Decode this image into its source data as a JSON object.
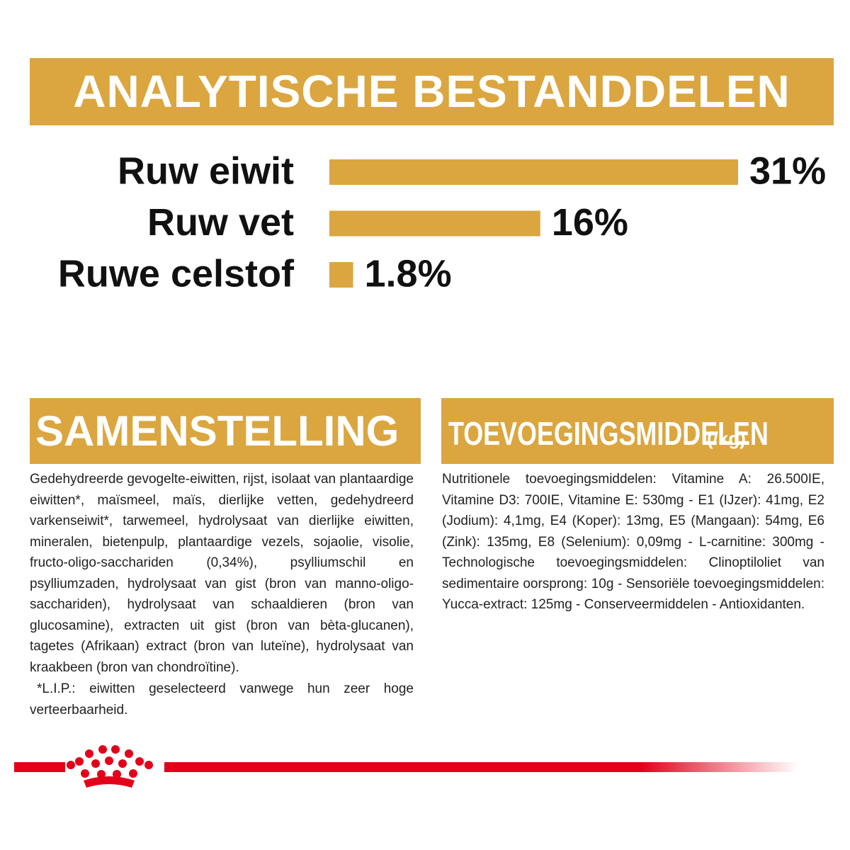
{
  "chart_data": {
    "type": "bar",
    "orientation": "horizontal",
    "title": "ANALYTISCHE BESTANDDELEN",
    "categories": [
      "Ruw eiwit",
      "Ruw vet",
      "Ruwe celstof"
    ],
    "values": [
      31,
      16,
      1.8
    ],
    "value_labels": [
      "31%",
      "16%",
      "1.8%"
    ],
    "color": "#dba63f"
  },
  "composition": {
    "title": "SAMENSTELLING",
    "text": "Gedehydreerde gevogelte-eiwitten, rijst, isolaat van plantaardige eiwitten*, maïsmeel, maïs, dierlijke vetten, gedehydreerd varkenseiwit*, tarwemeel, hydrolysaat van dierlijke eiwitten, mineralen, bietenpulp, plantaardige vezels, sojaolie, visolie, fructo-oligo-sacchariden (0,34%), psylliumschil en psylliumzaden, hydrolysaat van gist (bron van manno-oligo-sacchariden), hydrolysaat van schaaldieren (bron van glucosamine), extracten uit gist (bron van bèta-glucanen), tagetes (Afrikaan) extract (bron van luteïne), hydrolysaat van kraakbeen (bron van chondroïtine).",
    "note": "*L.I.P.: eiwitten geselecteerd vanwege hun zeer hoge verteerbaarheid."
  },
  "additives": {
    "title": "TOEVOEGINGSMIDDELEN",
    "unit": "(/kg)",
    "text": "Nutritionele toevoegingsmiddelen: Vitamine A: 26.500IE, Vitamine D3: 700IE, Vitamine E: 530mg - E1 (IJzer): 41mg, E2 (Jodium): 4,1mg, E4 (Koper): 13mg, E5 (Mangaan): 54mg, E6 (Zink): 135mg, E8 (Selenium): 0,09mg - L-carnitine: 300mg - Technologische toevoegingsmiddelen: Clinoptiloliet van sedimentaire oorsprong: 10g - Sensoriële toevoegingsmiddelen: Yucca-extract: 125mg - Conserveermiddelen - Antioxidanten."
  }
}
